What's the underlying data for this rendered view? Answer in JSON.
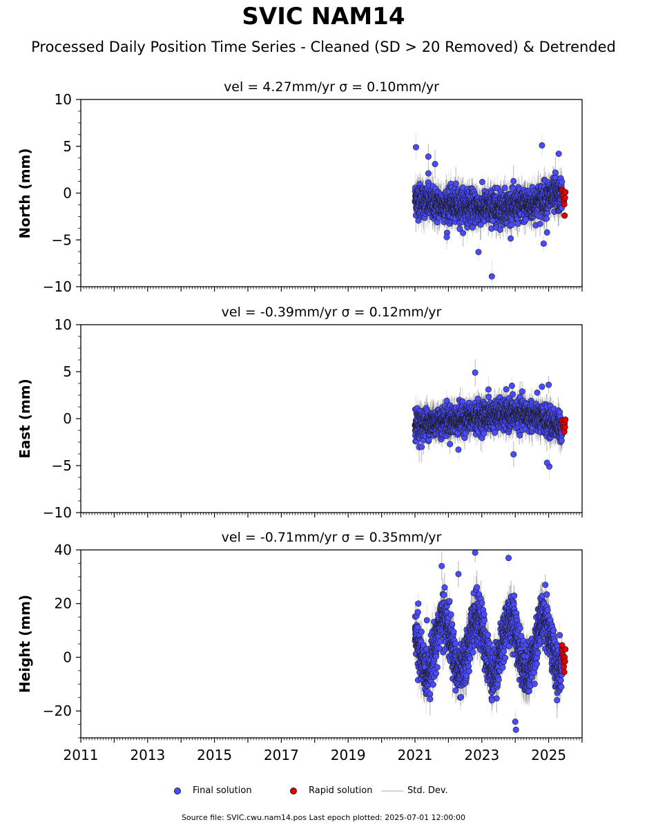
{
  "title": "SVIC NAM14",
  "subtitle": "Processed Daily Position Time Series - Cleaned (SD > 20 Removed) & Detrended",
  "legend": {
    "final": "Final solution",
    "rapid": "Rapid solution",
    "std": "Std. Dev."
  },
  "footer": "Source file: SVIC.cwu.nam14.pos  Last epoch plotted: 2025-07-01 12:00:00",
  "colors": {
    "final": "#4b4bff",
    "rapid": "#e00000",
    "std": "#b4b4b4",
    "edge": "#1a1a1a"
  },
  "chart_data": [
    {
      "type": "scatter",
      "title": "vel = 4.27mm/yr   σ = 0.10mm/yr",
      "ylabel": "North (mm)",
      "xlim": [
        2011,
        2026
      ],
      "ylim": [
        -10,
        10
      ],
      "yticks": [
        -10,
        -5,
        0,
        5,
        10
      ],
      "ytick_labels": [
        "−10",
        "−5",
        "0",
        "5",
        "10"
      ],
      "final_range": [
        2021.0,
        2025.4
      ],
      "rapid_range": [
        2025.4,
        2025.5
      ],
      "noise_sd": 0.85,
      "std_dev_typical": 1.2,
      "trend": [
        [
          2021.0,
          -0.6
        ],
        [
          2021.5,
          -1.1
        ],
        [
          2022.0,
          -1.3
        ],
        [
          2022.5,
          -1.4
        ],
        [
          2023.0,
          -1.6
        ],
        [
          2023.5,
          -1.5
        ],
        [
          2024.0,
          -1.4
        ],
        [
          2024.5,
          -1.2
        ],
        [
          2025.0,
          -0.4
        ],
        [
          2025.4,
          -0.3
        ]
      ],
      "outliers": [
        [
          2021.03,
          4.9
        ],
        [
          2021.4,
          3.9
        ],
        [
          2021.6,
          3.1
        ],
        [
          2022.9,
          -6.3
        ],
        [
          2023.3,
          -8.9
        ],
        [
          2024.8,
          5.1
        ],
        [
          2025.3,
          4.2
        ],
        [
          2024.85,
          -5.4
        ],
        [
          2021.95,
          -4.7
        ],
        [
          2021.4,
          2.1
        ],
        [
          2025.2,
          2.2
        ],
        [
          2024.95,
          -4.2
        ]
      ],
      "rapid_values": [
        0.4,
        0.2,
        -0.1,
        -0.3,
        -0.6,
        -0.9,
        -1.2,
        -2.4,
        -0.5,
        0.1
      ]
    },
    {
      "type": "scatter",
      "title": "vel = -0.39mm/yr   σ = 0.12mm/yr",
      "ylabel": "East (mm)",
      "xlim": [
        2011,
        2026
      ],
      "ylim": [
        -10,
        10
      ],
      "yticks": [
        -10,
        -5,
        0,
        5,
        10
      ],
      "ytick_labels": [
        "−10",
        "−5",
        "0",
        "5",
        "10"
      ],
      "final_range": [
        2021.0,
        2025.4
      ],
      "rapid_range": [
        2025.4,
        2025.5
      ],
      "noise_sd": 0.75,
      "std_dev_typical": 1.1,
      "trend": [
        [
          2021.0,
          -0.6
        ],
        [
          2021.5,
          -0.4
        ],
        [
          2022.0,
          -0.2
        ],
        [
          2022.5,
          0.0
        ],
        [
          2023.0,
          0.2
        ],
        [
          2023.5,
          0.4
        ],
        [
          2024.0,
          0.5
        ],
        [
          2024.5,
          0.3
        ],
        [
          2025.0,
          -0.4
        ],
        [
          2025.4,
          -0.9
        ]
      ],
      "outliers": [
        [
          2022.8,
          4.9
        ],
        [
          2023.9,
          3.5
        ],
        [
          2025.0,
          3.6
        ],
        [
          2025.02,
          -5.1
        ],
        [
          2024.95,
          -4.7
        ],
        [
          2023.95,
          -3.8
        ],
        [
          2021.2,
          -3.0
        ],
        [
          2022.3,
          -3.3
        ],
        [
          2024.8,
          3.4
        ],
        [
          2023.2,
          3.1
        ]
      ],
      "rapid_values": [
        -0.2,
        -0.4,
        -0.6,
        -0.8,
        -1.0,
        -1.2,
        -1.4,
        -0.5,
        -0.9,
        -0.1
      ]
    },
    {
      "type": "scatter",
      "title": "vel = -0.71mm/yr   σ = 0.35mm/yr",
      "ylabel": "Height (mm)",
      "xlim": [
        2011,
        2026
      ],
      "ylim": [
        -30,
        40
      ],
      "yticks": [
        -20,
        0,
        20,
        40
      ],
      "ytick_labels": [
        "−20",
        "0",
        "20",
        "40"
      ],
      "final_range": [
        2021.0,
        2025.4
      ],
      "rapid_range": [
        2025.4,
        2025.5
      ],
      "noise_sd": 4.5,
      "std_dev_typical": 5.0,
      "seasonal": {
        "amplitude": 10,
        "offset": 4.5,
        "peak_fraction": 0.85
      },
      "outliers": [
        [
          2022.8,
          39
        ],
        [
          2023.8,
          37
        ],
        [
          2021.8,
          34
        ],
        [
          2024.9,
          27
        ],
        [
          2024.0,
          -24
        ],
        [
          2024.02,
          -27
        ],
        [
          2023.3,
          -16
        ],
        [
          2025.25,
          -16
        ],
        [
          2021.1,
          20
        ],
        [
          2022.3,
          31
        ]
      ],
      "rapid_values": [
        4.5,
        2.5,
        1.0,
        -0.5,
        -2.0,
        -3.5,
        -5.5,
        0.0,
        -1.5,
        3.0
      ]
    }
  ],
  "x_tick_labels": [
    "2011",
    "2013",
    "2015",
    "2017",
    "2019",
    "2021",
    "2023",
    "2025"
  ]
}
